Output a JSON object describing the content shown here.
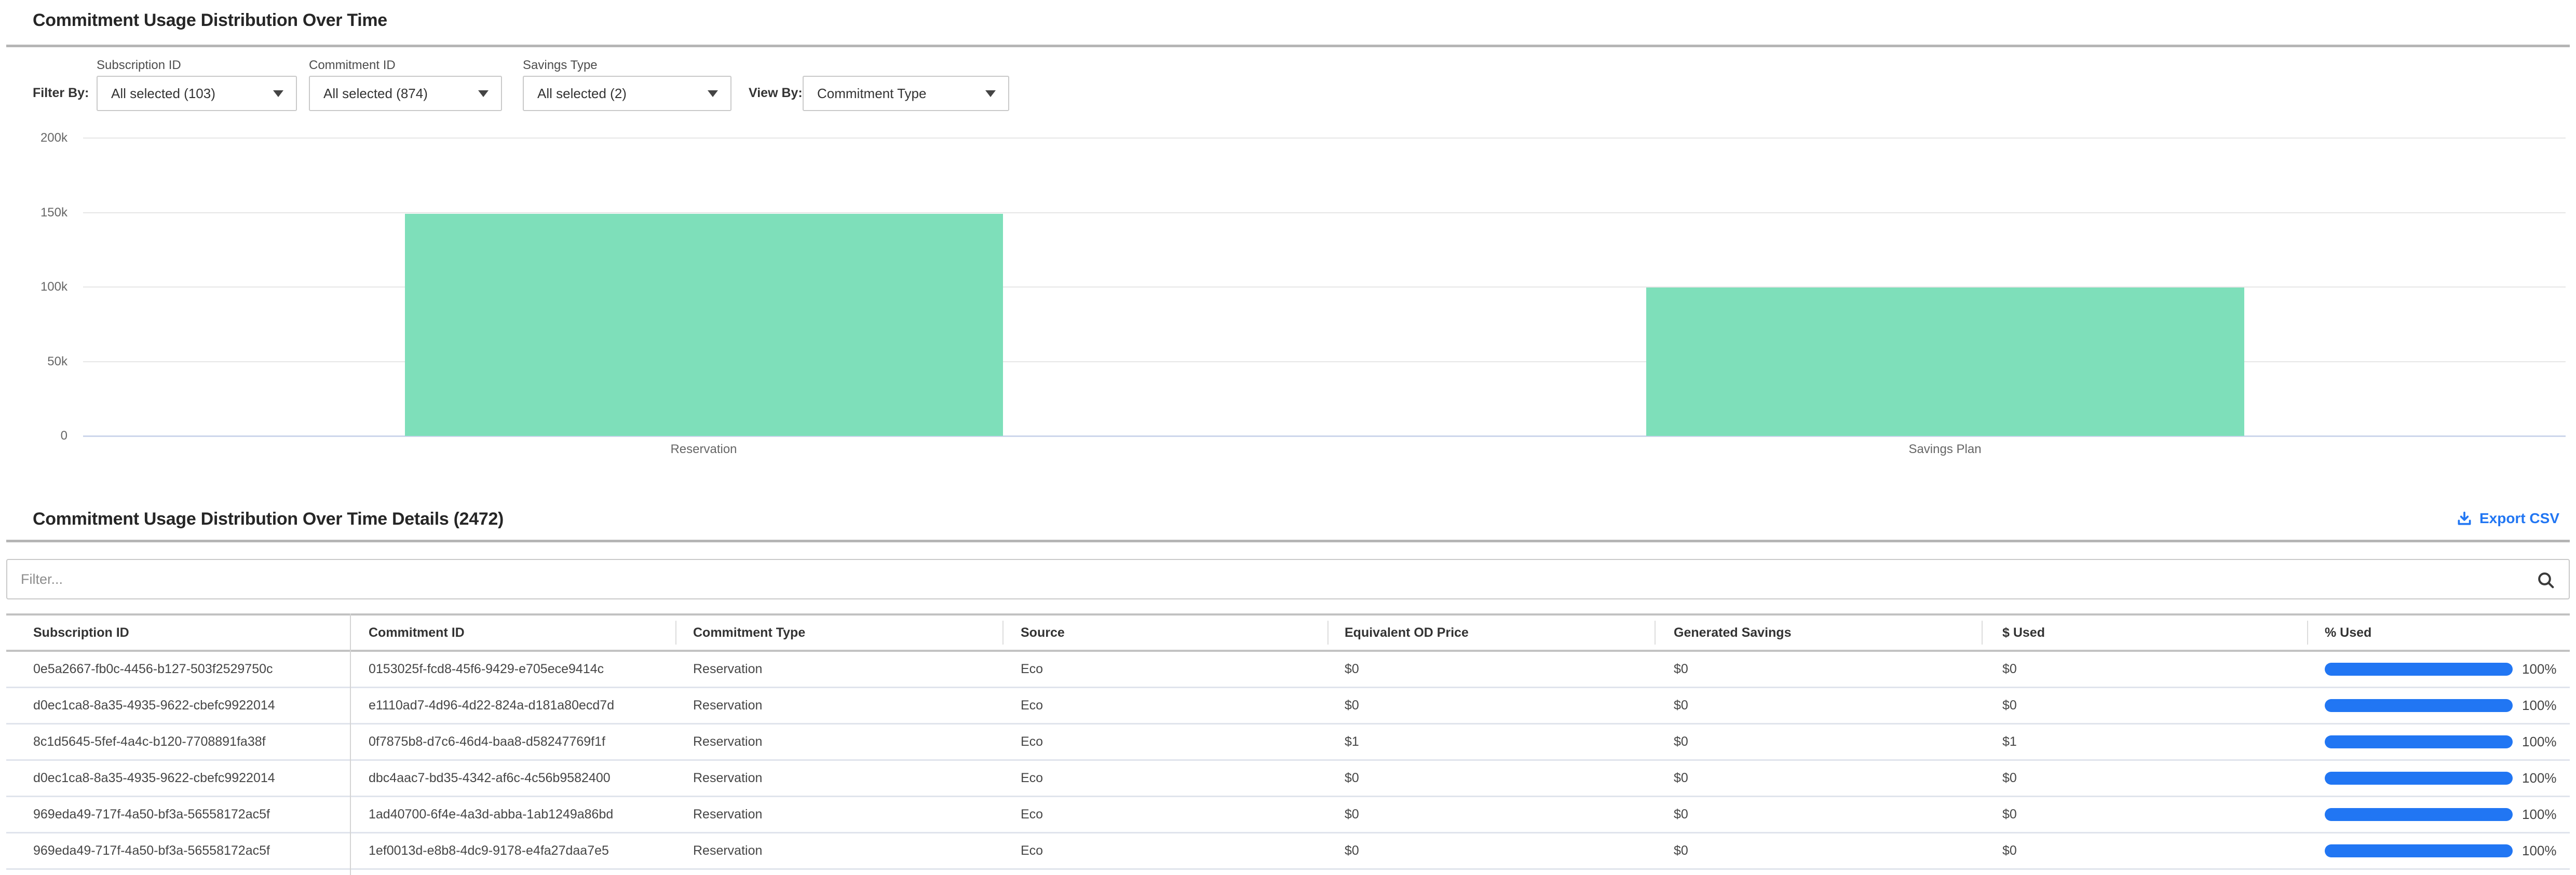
{
  "header": {
    "title": "Commitment Usage Distribution Over Time"
  },
  "filter_bar": {
    "filter_by_label": "Filter By:",
    "filters": [
      {
        "label": "Subscription ID",
        "value": "All selected (103)"
      },
      {
        "label": "Commitment ID",
        "value": "All selected (874)"
      },
      {
        "label": "Savings Type",
        "value": "All selected (2)"
      }
    ],
    "view_by_label": "View By:",
    "view_by_value": "Commitment Type"
  },
  "chart_data": {
    "type": "bar",
    "title": "",
    "xlabel": "",
    "ylabel": "",
    "categories": [
      "Reservation",
      "Savings Plan"
    ],
    "values": [
      149000,
      99500
    ],
    "ylim": [
      0,
      200000
    ],
    "yticks": [
      {
        "value": 0,
        "label": "0"
      },
      {
        "value": 50000,
        "label": "50k"
      },
      {
        "value": 100000,
        "label": "100k"
      },
      {
        "value": 150000,
        "label": "150k"
      },
      {
        "value": 200000,
        "label": "200k"
      }
    ],
    "grid": true,
    "legend": false,
    "bar_color": "#7edfba"
  },
  "details": {
    "title": "Commitment Usage Distribution Over Time Details (2472)",
    "export_csv_label": "Export CSV",
    "filter_placeholder": "Filter...",
    "table": {
      "columns": [
        "Subscription ID",
        "Commitment ID",
        "Commitment Type",
        "Source",
        "Equivalent OD Price",
        "Generated Savings",
        "$ Used",
        "% Used"
      ],
      "rows": [
        {
          "subscription_id": "0e5a2667-fb0c-4456-b127-503f2529750c",
          "commitment_id": "0153025f-fcd8-45f6-9429-e705ece9414c",
          "commitment_type": "Reservation",
          "source": "Eco",
          "equivalent_od_price": "$0",
          "generated_savings": "$0",
          "used_amount": "$0",
          "used_percent": 100,
          "used_percent_label": "100%"
        },
        {
          "subscription_id": "d0ec1ca8-8a35-4935-9622-cbefc9922014",
          "commitment_id": "e1110ad7-4d96-4d22-824a-d181a80ecd7d",
          "commitment_type": "Reservation",
          "source": "Eco",
          "equivalent_od_price": "$0",
          "generated_savings": "$0",
          "used_amount": "$0",
          "used_percent": 100,
          "used_percent_label": "100%"
        },
        {
          "subscription_id": "8c1d5645-5fef-4a4c-b120-7708891fa38f",
          "commitment_id": "0f7875b8-d7c6-46d4-baa8-d58247769f1f",
          "commitment_type": "Reservation",
          "source": "Eco",
          "equivalent_od_price": "$1",
          "generated_savings": "$0",
          "used_amount": "$1",
          "used_percent": 100,
          "used_percent_label": "100%"
        },
        {
          "subscription_id": "d0ec1ca8-8a35-4935-9622-cbefc9922014",
          "commitment_id": "dbc4aac7-bd35-4342-af6c-4c56b9582400",
          "commitment_type": "Reservation",
          "source": "Eco",
          "equivalent_od_price": "$0",
          "generated_savings": "$0",
          "used_amount": "$0",
          "used_percent": 100,
          "used_percent_label": "100%"
        },
        {
          "subscription_id": "969eda49-717f-4a50-bf3a-56558172ac5f",
          "commitment_id": "1ad40700-6f4e-4a3d-abba-1ab1249a86bd",
          "commitment_type": "Reservation",
          "source": "Eco",
          "equivalent_od_price": "$0",
          "generated_savings": "$0",
          "used_amount": "$0",
          "used_percent": 100,
          "used_percent_label": "100%"
        },
        {
          "subscription_id": "969eda49-717f-4a50-bf3a-56558172ac5f",
          "commitment_id": "1ef0013d-e8b8-4dc9-9178-e4fa27daa7e5",
          "commitment_type": "Reservation",
          "source": "Eco",
          "equivalent_od_price": "$0",
          "generated_savings": "$0",
          "used_amount": "$0",
          "used_percent": 100,
          "used_percent_label": "100%"
        }
      ]
    }
  },
  "colors": {
    "accent_blue": "#2176f3",
    "bar_green": "#7edfba"
  }
}
